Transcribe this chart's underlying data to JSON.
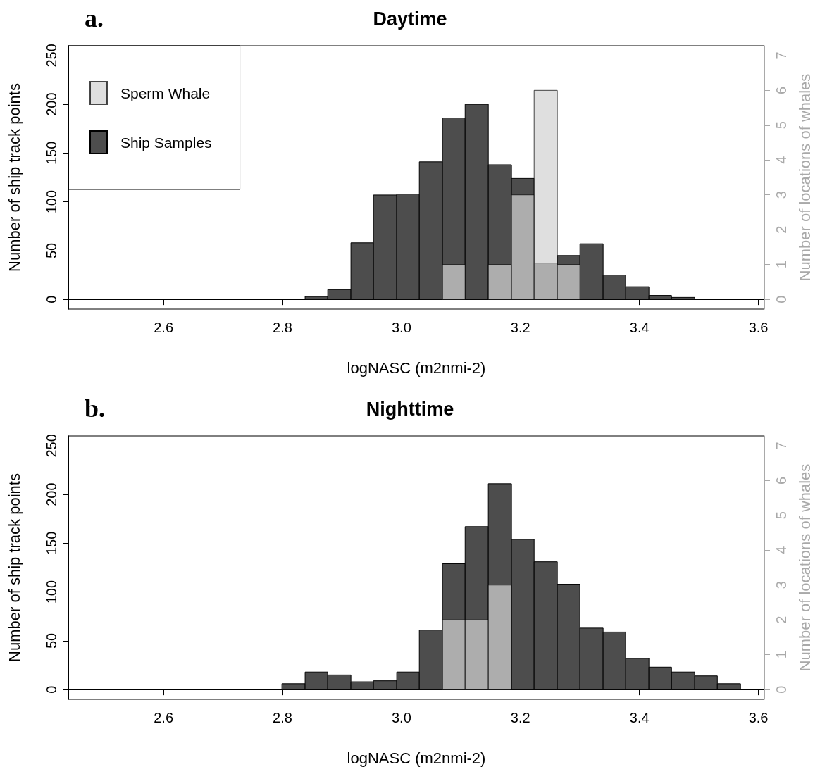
{
  "chart_data": [
    {
      "type": "histogram",
      "title": "Daytime",
      "xlabel": "logNASC (m2nmi-2)",
      "ylabel": "Number of ship track points",
      "y2label": "Number of locations of whales",
      "annotations": [
        "a."
      ],
      "bins": [
        2.838,
        2.876,
        2.915,
        2.953,
        2.992,
        3.03,
        3.069,
        3.107,
        3.146,
        3.185,
        3.223,
        3.262,
        3.3,
        3.339,
        3.377,
        3.416,
        3.454,
        3.493
      ],
      "series": [
        {
          "name": "Ship Samples",
          "color": "#4d4d4d",
          "values": [
            3,
            10,
            58,
            107,
            108,
            141,
            186,
            200,
            138,
            124,
            37,
            45,
            57,
            25,
            13,
            4,
            2
          ]
        },
        {
          "name": "Sperm Whale",
          "color": "#d3d3d3",
          "axis": "y2",
          "values": [
            0,
            0,
            0,
            0,
            0,
            0,
            1,
            0,
            1,
            3,
            6,
            1,
            0,
            0,
            0,
            0,
            0
          ]
        }
      ],
      "xlim": [
        2.44,
        3.61
      ],
      "xticks": [
        2.6,
        2.8,
        {
          "value": 3,
          "label": "3.0"
        },
        3.2,
        3.4,
        3.6
      ],
      "ylim": [
        -10,
        260
      ],
      "yticks": [
        0,
        50,
        100,
        150,
        200,
        250
      ],
      "y2lim": [
        -0.28,
        7.28
      ],
      "y2ticks": [
        0,
        1,
        2,
        3,
        4,
        5,
        6,
        7
      ],
      "legend": "top left"
    },
    {
      "type": "histogram",
      "title": "Nighttime",
      "xlabel": "logNASC (m2nmi-2)",
      "ylabel": "Number of ship track points",
      "y2label": "Number of locations of whales",
      "annotations": [
        "b."
      ],
      "bins": [
        2.799,
        2.838,
        2.876,
        2.915,
        2.953,
        2.992,
        3.03,
        3.069,
        3.107,
        3.146,
        3.185,
        3.223,
        3.262,
        3.3,
        3.339,
        3.377,
        3.416,
        3.454,
        3.493,
        3.531,
        3.57
      ],
      "series": [
        {
          "color": "#4d4d4d",
          "values": [
            6,
            18,
            15,
            8,
            9,
            18,
            61,
            129,
            167,
            211,
            154,
            131,
            108,
            63,
            59,
            32,
            23,
            18,
            14,
            6
          ]
        },
        {
          "color": "#d3d3d3",
          "axis": "y2",
          "values": [
            0,
            0,
            0,
            0,
            0,
            0,
            0,
            2,
            2,
            3,
            0,
            0,
            0,
            0,
            0,
            0,
            0,
            0,
            0,
            0
          ]
        }
      ],
      "xlim": [
        2.44,
        3.61
      ],
      "xticks": [
        2.6,
        2.8,
        {
          "value": 3,
          "label": "3.0"
        },
        3.2,
        3.4,
        3.6
      ],
      "ylim": [
        -10,
        260
      ],
      "yticks": [
        0,
        50,
        100,
        150,
        200,
        250
      ],
      "y2lim": [
        -0.28,
        7.28
      ],
      "y2ticks": [
        0,
        1,
        2,
        3,
        4,
        5,
        6,
        7
      ],
      "legend": false
    }
  ]
}
